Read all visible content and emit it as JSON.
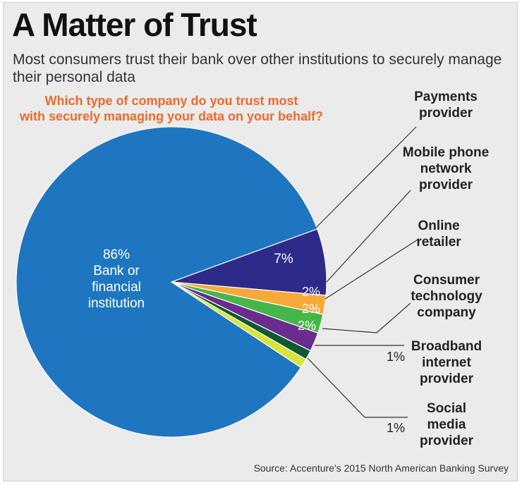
{
  "header": {
    "title": "A Matter of Trust",
    "subtitle": "Most consumers trust their bank over other institutions to securely manage their personal data"
  },
  "footer": {
    "source": "Source: Accenture's 2015 North American Banking Survey"
  },
  "chart_data": {
    "type": "pie",
    "title": "Which type of company do you trust most with securely managing your data on your behalf?",
    "unit": "%",
    "slices": [
      {
        "name": "Bank or financial institution",
        "value": 86,
        "label": "86%",
        "lines": [
          "86%",
          "Bank or",
          "financial",
          "institution"
        ],
        "color": "#1e76c1"
      },
      {
        "name": "Payments provider",
        "value": 7,
        "label": "7%",
        "lines": [
          "Payments",
          "provider"
        ],
        "color": "#2d2a8a"
      },
      {
        "name": "Mobile phone network provider",
        "value": 2,
        "label": "2%",
        "lines": [
          "Mobile phone",
          "network",
          "provider"
        ],
        "color": "#f7a93b"
      },
      {
        "name": "Online retailer",
        "value": 2,
        "label": "2%",
        "lines": [
          "Online",
          "retailer"
        ],
        "color": "#46b649"
      },
      {
        "name": "Consumer technology company",
        "value": 2,
        "label": "2%",
        "lines": [
          "Consumer",
          "technology",
          "company"
        ],
        "color": "#6a2c8f"
      },
      {
        "name": "Broadband internet provider",
        "value": 1,
        "label": "1%",
        "lines": [
          "Broadband",
          "internet",
          "provider"
        ],
        "color": "#0f5a2e"
      },
      {
        "name": "Social media provider",
        "value": 1,
        "label": "1%",
        "lines": [
          "Social",
          "media",
          "provider"
        ],
        "color": "#d8e43a"
      }
    ],
    "legend": "none"
  }
}
